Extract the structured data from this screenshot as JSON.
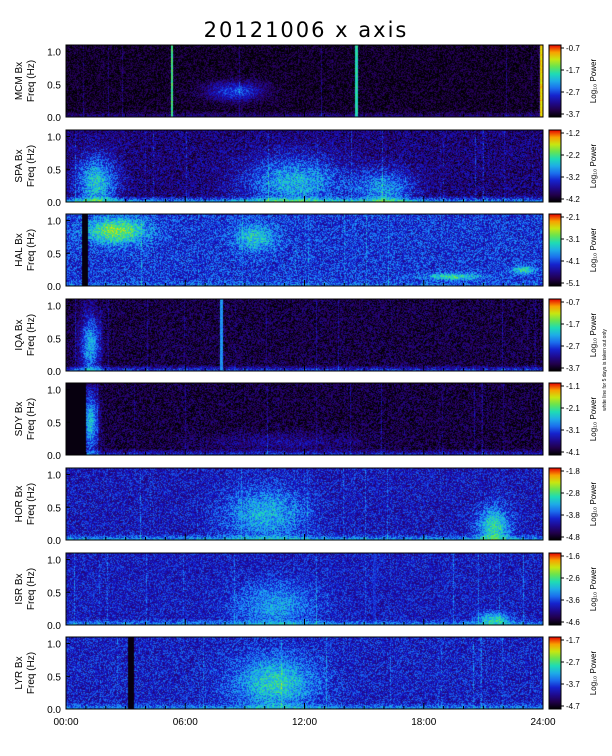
{
  "title": "20121006 x axis",
  "side_note": "white line for 5 days is taken out only",
  "chart_data": [
    {
      "type": "heatmap",
      "station_label": "MCM Bx",
      "ylabel": "Freq (Hz)",
      "yticks": [
        "0.0",
        "0.5",
        "1.0"
      ],
      "ylim": [
        0,
        1.1
      ],
      "cbar_label": "Log₁₀ Power",
      "cbar_ticks": [
        "-0.7",
        "-1.7",
        "-2.7",
        "-3.7"
      ],
      "cbar_range": [
        -3.7,
        -0.7
      ],
      "base": 0.05,
      "noise": 0.1,
      "low": 0.15,
      "gaps": [],
      "blobs": [
        {
          "t": 8.5,
          "f": 0.4,
          "rt": 1.5,
          "rf": 0.15,
          "a": 0.3
        }
      ],
      "lines": [
        {
          "t": 5.3,
          "a": 0.6
        },
        {
          "t": 14.6,
          "a": 0.55
        },
        {
          "t": 23.9,
          "a": 0.8
        }
      ]
    },
    {
      "type": "heatmap",
      "station_label": "SPA Bx",
      "ylabel": "Freq (Hz)",
      "yticks": [
        "0.0",
        "0.5",
        "1.0"
      ],
      "ylim": [
        0,
        1.1
      ],
      "cbar_label": "Log₁₀ Power",
      "cbar_ticks": [
        "-1.2",
        "-2.2",
        "-3.2",
        "-4.2"
      ],
      "cbar_range": [
        -4.2,
        -1.2
      ],
      "base": 0.16,
      "noise": 0.14,
      "low": 0.35,
      "gaps": [],
      "blobs": [
        {
          "t": 1.5,
          "f": 0.3,
          "rt": 1.0,
          "rf": 0.4,
          "a": 0.4
        },
        {
          "t": 11.5,
          "f": 0.3,
          "rt": 2.5,
          "rf": 0.4,
          "a": 0.35
        },
        {
          "t": 16,
          "f": 0.2,
          "rt": 1.5,
          "rf": 0.3,
          "a": 0.3
        }
      ],
      "lines": []
    },
    {
      "type": "heatmap",
      "station_label": "HAL Bx",
      "ylabel": "Freq (Hz)",
      "yticks": [
        "0.0",
        "0.5",
        "1.0"
      ],
      "ylim": [
        0,
        1.1
      ],
      "cbar_label": "Log₁₀ Power",
      "cbar_ticks": [
        "-2.1",
        "-3.1",
        "-4.1",
        "-5.1"
      ],
      "cbar_range": [
        -5.1,
        -2.1
      ],
      "base": 0.32,
      "noise": 0.14,
      "low": 0.1,
      "gaps": [
        {
          "t0": 0.8,
          "t1": 1.1
        }
      ],
      "blobs": [
        {
          "t": 2.5,
          "f": 0.85,
          "rt": 1.5,
          "rf": 0.2,
          "a": 0.4
        },
        {
          "t": 9.5,
          "f": 0.75,
          "rt": 1.0,
          "rf": 0.2,
          "a": 0.25
        },
        {
          "t": 19.5,
          "f": 0.15,
          "rt": 1.5,
          "rf": 0.05,
          "a": 0.3
        },
        {
          "t": 23,
          "f": 0.25,
          "rt": 0.6,
          "rf": 0.06,
          "a": 0.3
        }
      ],
      "lines": []
    },
    {
      "type": "heatmap",
      "station_label": "IQA Bx",
      "ylabel": "Freq (Hz)",
      "yticks": [
        "0.0",
        "0.5",
        "1.0"
      ],
      "ylim": [
        0,
        1.1
      ],
      "cbar_label": "Log₁₀ Power",
      "cbar_ticks": [
        "-0.7",
        "-1.7",
        "-2.7",
        "-3.7"
      ],
      "cbar_range": [
        -3.7,
        -0.7
      ],
      "base": 0.09,
      "noise": 0.12,
      "low": 0.3,
      "gaps": [],
      "blobs": [
        {
          "t": 1.2,
          "f": 0.4,
          "rt": 0.5,
          "rf": 0.5,
          "a": 0.4
        }
      ],
      "lines": [
        {
          "t": 7.8,
          "a": 0.4
        }
      ]
    },
    {
      "type": "heatmap",
      "station_label": "SDY Bx",
      "ylabel": "Freq (Hz)",
      "yticks": [
        "0.0",
        "0.5",
        "1.0"
      ],
      "ylim": [
        0,
        1.1
      ],
      "cbar_label": "Log₁₀ Power",
      "cbar_ticks": [
        "-1.1",
        "-2.1",
        "-3.1",
        "-4.1"
      ],
      "cbar_range": [
        -4.1,
        -1.1
      ],
      "base": 0.08,
      "noise": 0.12,
      "low": 0.25,
      "gaps": [
        {
          "t0": 0,
          "t1": 1.0
        }
      ],
      "blobs": [
        {
          "t": 1.2,
          "f": 0.5,
          "rt": 0.4,
          "rf": 0.5,
          "a": 0.45
        },
        {
          "t": 11,
          "f": 0.2,
          "rt": 4.0,
          "rf": 0.15,
          "a": 0.12
        }
      ],
      "lines": []
    },
    {
      "type": "heatmap",
      "station_label": "HOR Bx",
      "ylabel": "Freq (Hz)",
      "yticks": [
        "0.0",
        "0.5",
        "1.0"
      ],
      "ylim": [
        0,
        1.1
      ],
      "cbar_label": "Log₁₀ Power",
      "cbar_ticks": [
        "-1.8",
        "-2.8",
        "-3.8",
        "-4.8"
      ],
      "cbar_range": [
        -4.8,
        -1.8
      ],
      "base": 0.26,
      "noise": 0.13,
      "low": 0.25,
      "gaps": [],
      "blobs": [
        {
          "t": 10,
          "f": 0.4,
          "rt": 2.0,
          "rf": 0.4,
          "a": 0.25
        },
        {
          "t": 21.5,
          "f": 0.2,
          "rt": 0.8,
          "rf": 0.3,
          "a": 0.35
        }
      ],
      "lines": []
    },
    {
      "type": "heatmap",
      "station_label": "ISR Bx",
      "ylabel": "Freq (Hz)",
      "yticks": [
        "0.0",
        "0.5",
        "1.0"
      ],
      "ylim": [
        0,
        1.1
      ],
      "cbar_label": "Log₁₀ Power",
      "cbar_ticks": [
        "-1.6",
        "-2.6",
        "-3.6",
        "-4.6"
      ],
      "cbar_range": [
        -4.6,
        -1.6
      ],
      "base": 0.27,
      "noise": 0.12,
      "low": 0.2,
      "gaps": [],
      "blobs": [
        {
          "t": 10.5,
          "f": 0.3,
          "rt": 2.0,
          "rf": 0.35,
          "a": 0.2
        },
        {
          "t": 21.5,
          "f": 0.1,
          "rt": 0.8,
          "rf": 0.1,
          "a": 0.3
        }
      ],
      "lines": [
        {
          "t": 15.5,
          "a": 0.25
        }
      ]
    },
    {
      "type": "heatmap",
      "station_label": "LYR Bx",
      "ylabel": "Freq (Hz)",
      "yticks": [
        "0.0",
        "0.5",
        "1.0"
      ],
      "ylim": [
        0,
        1.1
      ],
      "cbar_label": "Log₁₀ Power",
      "cbar_ticks": [
        "-1.7",
        "-2.7",
        "-3.7",
        "-4.7"
      ],
      "cbar_range": [
        -4.7,
        -1.7
      ],
      "base": 0.28,
      "noise": 0.13,
      "low": 0.2,
      "gaps": [
        {
          "t0": 3.1,
          "t1": 3.4
        }
      ],
      "blobs": [
        {
          "t": 10.5,
          "f": 0.4,
          "rt": 2.0,
          "rf": 0.4,
          "a": 0.3
        }
      ],
      "lines": []
    }
  ],
  "xaxis": {
    "ticks": [
      "00:00",
      "06:00",
      "12:00",
      "18:00",
      "24:00"
    ],
    "xlim": [
      0,
      24
    ]
  }
}
